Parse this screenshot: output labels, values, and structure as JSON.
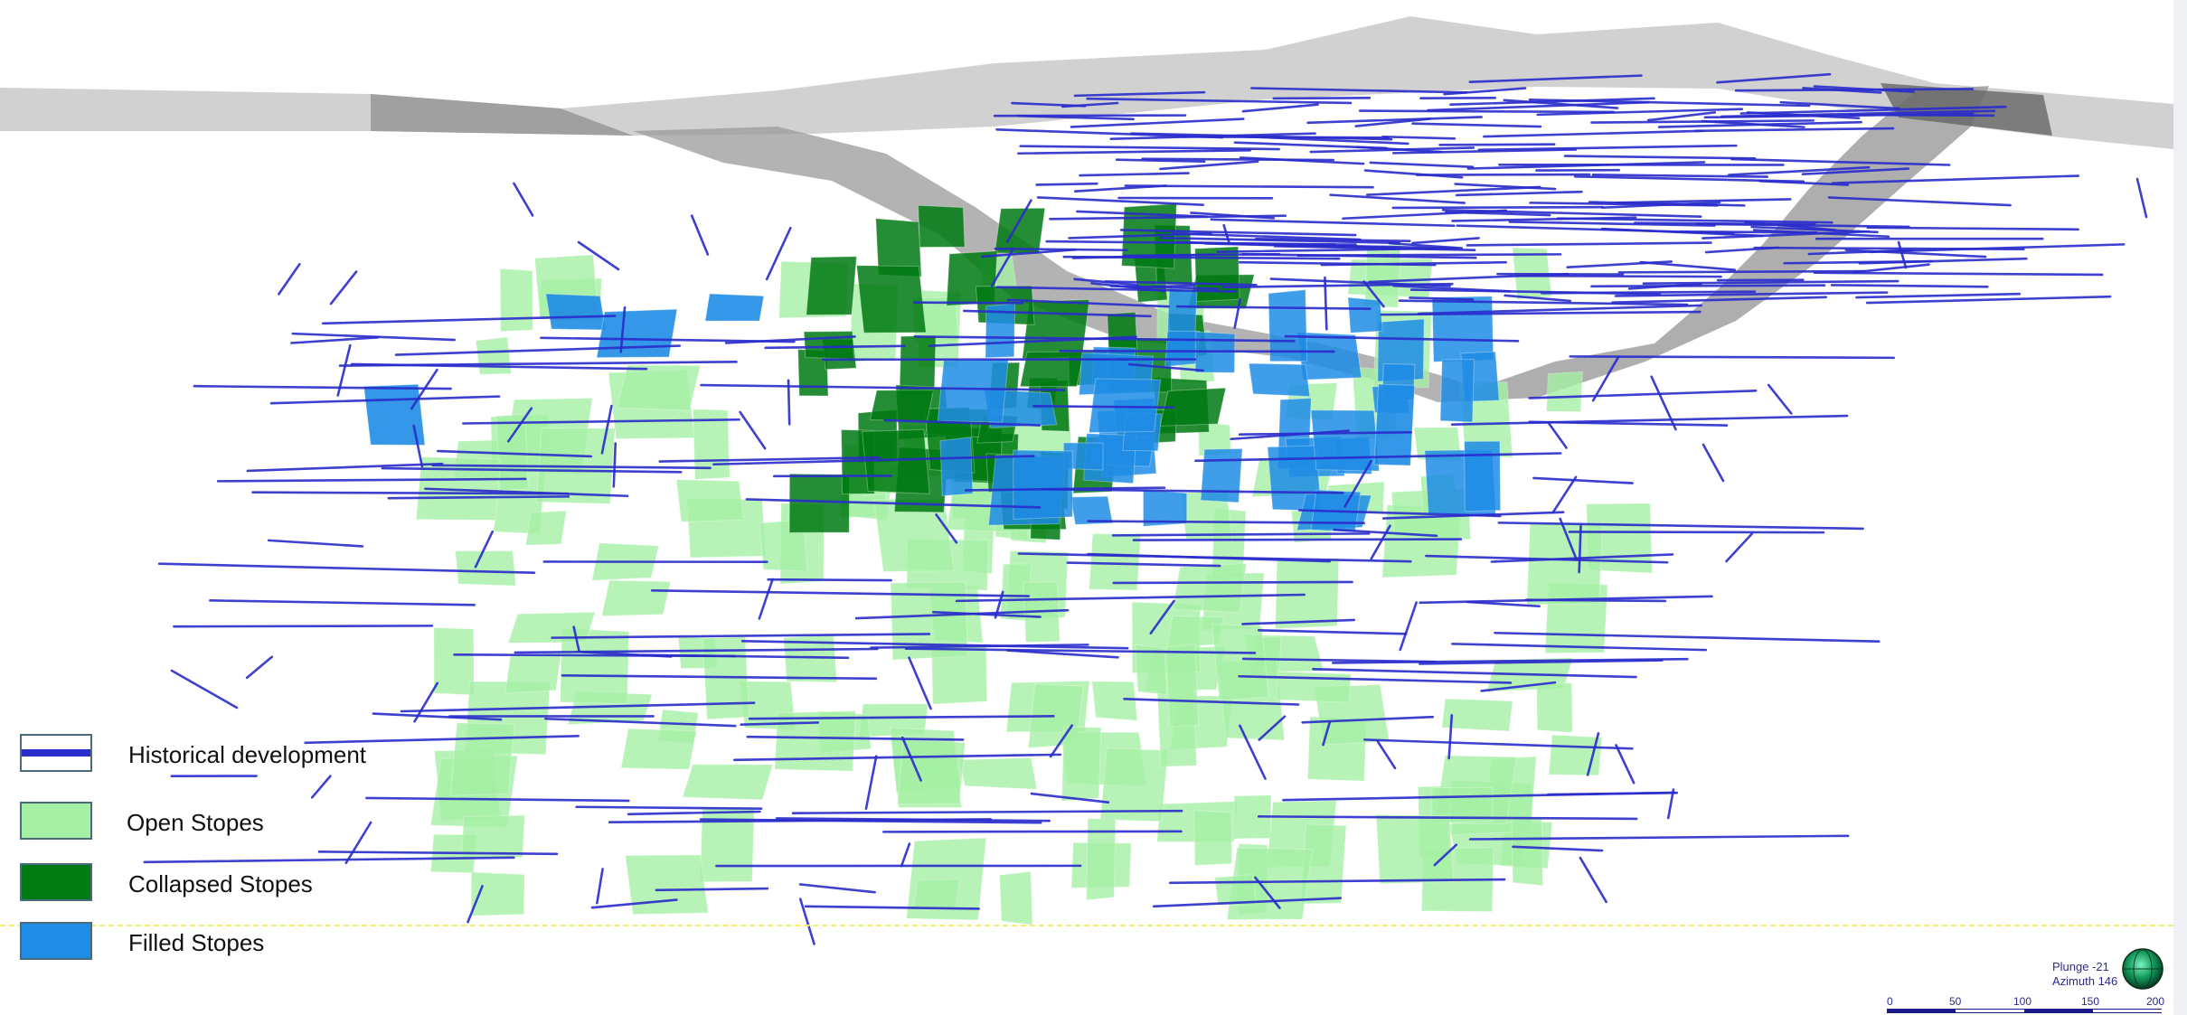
{
  "legend": {
    "items": [
      {
        "label": "Historical development",
        "swatch": "line",
        "color": "#2a2ccc"
      },
      {
        "label": "Open Stopes",
        "swatch": "fill",
        "color": "#a6f0a6"
      },
      {
        "label": "Collapsed Stopes",
        "swatch": "fill",
        "color": "#007a12"
      },
      {
        "label": "Filled Stopes",
        "swatch": "fill",
        "color": "#1f8ce6"
      }
    ]
  },
  "orientation": {
    "plunge": "Plunge -21",
    "azimuth": "Azimuth 146",
    "icon": "globe-icon"
  },
  "scale": {
    "ticks": [
      "0",
      "50",
      "100",
      "150",
      "200"
    ]
  },
  "colors": {
    "development": "#2a2ccc",
    "open": "#a6f0a6",
    "collapsed": "#007a12",
    "filled": "#1f8ce6",
    "surface": "#c9c9c9",
    "pit": "#9a9a9a",
    "scale": "#1a1a8a"
  }
}
